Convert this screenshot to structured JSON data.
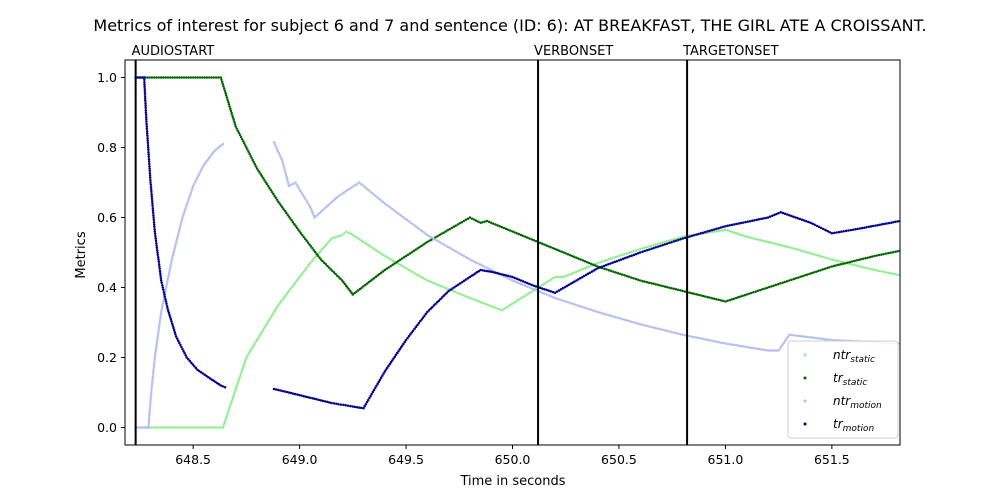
{
  "chart_data": {
    "type": "scatter",
    "title": "Metrics of interest for subject 6 and 7 and sentence (ID: 6): AT BREAKFAST, THE GIRL ATE A CROISSANT.",
    "xlabel": "Time in seconds",
    "ylabel": "Metrics",
    "xlim": [
      648.18,
      651.82
    ],
    "ylim": [
      -0.05,
      1.05
    ],
    "xticks": [
      648.5,
      649.0,
      649.5,
      650.0,
      650.5,
      651.0,
      651.5
    ],
    "xtick_labels": [
      "648.5",
      "649.0",
      "649.5",
      "650.0",
      "650.5",
      "651.0",
      "651.5"
    ],
    "yticks": [
      0.0,
      0.2,
      0.4,
      0.6,
      0.8,
      1.0
    ],
    "ytick_labels": [
      "0.0",
      "0.2",
      "0.4",
      "0.6",
      "0.8",
      "1.0"
    ],
    "grid": false,
    "legend_position": "lower-right",
    "events": [
      {
        "label": "AUDIOSTART",
        "x": 648.23
      },
      {
        "label": "VERBONSET",
        "x": 650.12
      },
      {
        "label": "TARGETONSET",
        "x": 650.82
      }
    ],
    "series": [
      {
        "legend_base": "ntr",
        "legend_sub": "static",
        "color": "#90ee90",
        "segments": [
          [
            [
              648.23,
              0.0
            ],
            [
              648.64,
              0.0
            ],
            [
              648.75,
              0.2
            ],
            [
              648.9,
              0.35
            ],
            [
              649.05,
              0.47
            ],
            [
              649.15,
              0.54
            ],
            [
              649.2,
              0.55
            ],
            [
              649.22,
              0.56
            ],
            [
              649.25,
              0.55
            ],
            [
              649.4,
              0.49
            ],
            [
              649.6,
              0.42
            ],
            [
              649.8,
              0.37
            ],
            [
              649.95,
              0.335
            ],
            [
              650.2,
              0.43
            ],
            [
              650.24,
              0.43
            ],
            [
              650.4,
              0.47
            ],
            [
              650.6,
              0.51
            ],
            [
              650.8,
              0.545
            ],
            [
              651.0,
              0.565
            ],
            [
              651.1,
              0.545
            ],
            [
              651.3,
              0.515
            ],
            [
              651.5,
              0.48
            ],
            [
              651.7,
              0.45
            ],
            [
              651.82,
              0.435
            ]
          ]
        ]
      },
      {
        "legend_base": "tr",
        "legend_sub": "static",
        "color": "#006400",
        "segments": [
          [
            [
              648.23,
              1.0
            ],
            [
              648.63,
              1.0
            ],
            [
              648.7,
              0.86
            ],
            [
              648.8,
              0.74
            ],
            [
              648.9,
              0.645
            ],
            [
              649.0,
              0.56
            ],
            [
              649.1,
              0.48
            ],
            [
              649.2,
              0.42
            ],
            [
              649.25,
              0.38
            ],
            [
              649.4,
              0.45
            ],
            [
              649.6,
              0.53
            ],
            [
              649.8,
              0.6
            ],
            [
              649.85,
              0.585
            ],
            [
              649.88,
              0.59
            ],
            [
              650.0,
              0.56
            ],
            [
              650.2,
              0.51
            ],
            [
              650.4,
              0.46
            ],
            [
              650.6,
              0.42
            ],
            [
              650.8,
              0.39
            ],
            [
              651.0,
              0.36
            ],
            [
              651.1,
              0.38
            ],
            [
              651.3,
              0.42
            ],
            [
              651.5,
              0.46
            ],
            [
              651.7,
              0.49
            ],
            [
              651.82,
              0.505
            ]
          ]
        ]
      },
      {
        "legend_base": "ntr",
        "legend_sub": "motion",
        "color": "#b3bdf2",
        "segments": [
          [
            [
              648.23,
              0.0
            ],
            [
              648.29,
              0.0
            ],
            [
              648.3,
              0.08
            ],
            [
              648.32,
              0.2
            ],
            [
              648.35,
              0.33
            ],
            [
              648.4,
              0.48
            ],
            [
              648.45,
              0.6
            ],
            [
              648.5,
              0.69
            ],
            [
              648.55,
              0.75
            ],
            [
              648.6,
              0.79
            ],
            [
              648.64,
              0.81
            ]
          ],
          [
            [
              648.88,
              0.815
            ],
            [
              648.92,
              0.76
            ],
            [
              648.95,
              0.69
            ],
            [
              648.98,
              0.7
            ],
            [
              649.05,
              0.63
            ],
            [
              649.07,
              0.6
            ],
            [
              649.18,
              0.66
            ],
            [
              649.28,
              0.7
            ],
            [
              649.4,
              0.64
            ],
            [
              649.6,
              0.55
            ],
            [
              649.8,
              0.48
            ],
            [
              650.0,
              0.42
            ],
            [
              650.2,
              0.37
            ],
            [
              650.4,
              0.33
            ],
            [
              650.6,
              0.295
            ],
            [
              650.8,
              0.265
            ],
            [
              651.0,
              0.24
            ],
            [
              651.2,
              0.22
            ],
            [
              651.25,
              0.22
            ],
            [
              651.3,
              0.265
            ],
            [
              651.5,
              0.25
            ],
            [
              651.82,
              0.24
            ]
          ]
        ]
      },
      {
        "legend_base": "tr",
        "legend_sub": "motion",
        "color": "#00008b",
        "segments": [
          [
            [
              648.23,
              1.0
            ],
            [
              648.27,
              1.0
            ],
            [
              648.28,
              0.88
            ],
            [
              648.3,
              0.7
            ],
            [
              648.32,
              0.56
            ],
            [
              648.35,
              0.42
            ],
            [
              648.38,
              0.34
            ],
            [
              648.42,
              0.26
            ],
            [
              648.47,
              0.2
            ],
            [
              648.52,
              0.165
            ],
            [
              648.58,
              0.14
            ],
            [
              648.63,
              0.12
            ],
            [
              648.65,
              0.115
            ]
          ],
          [
            [
              648.88,
              0.11
            ],
            [
              648.95,
              0.1
            ],
            [
              649.05,
              0.085
            ],
            [
              649.15,
              0.07
            ],
            [
              649.25,
              0.06
            ],
            [
              649.3,
              0.055
            ],
            [
              649.4,
              0.16
            ],
            [
              649.5,
              0.25
            ],
            [
              649.6,
              0.33
            ],
            [
              649.7,
              0.39
            ],
            [
              649.8,
              0.43
            ],
            [
              649.85,
              0.45
            ],
            [
              649.9,
              0.445
            ],
            [
              650.0,
              0.43
            ],
            [
              650.1,
              0.405
            ],
            [
              650.2,
              0.385
            ],
            [
              650.3,
              0.42
            ],
            [
              650.4,
              0.455
            ],
            [
              650.6,
              0.5
            ],
            [
              650.8,
              0.54
            ],
            [
              651.0,
              0.575
            ],
            [
              651.2,
              0.6
            ],
            [
              651.26,
              0.615
            ],
            [
              651.4,
              0.585
            ],
            [
              651.5,
              0.555
            ],
            [
              651.6,
              0.565
            ],
            [
              651.82,
              0.59
            ]
          ]
        ]
      }
    ]
  }
}
